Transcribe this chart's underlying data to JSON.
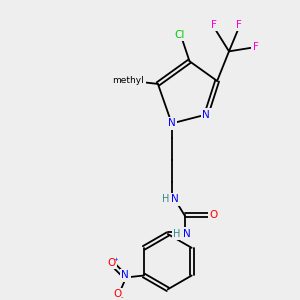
{
  "bg_color": "#eeeeee",
  "bond_color": "#000000",
  "colors": {
    "N": "#0000ff",
    "O": "#ff0000",
    "F": "#ff00cc",
    "Cl": "#00cc00",
    "H": "#338888",
    "C": "#000000"
  },
  "font_size": 7.5,
  "lw": 1.2
}
